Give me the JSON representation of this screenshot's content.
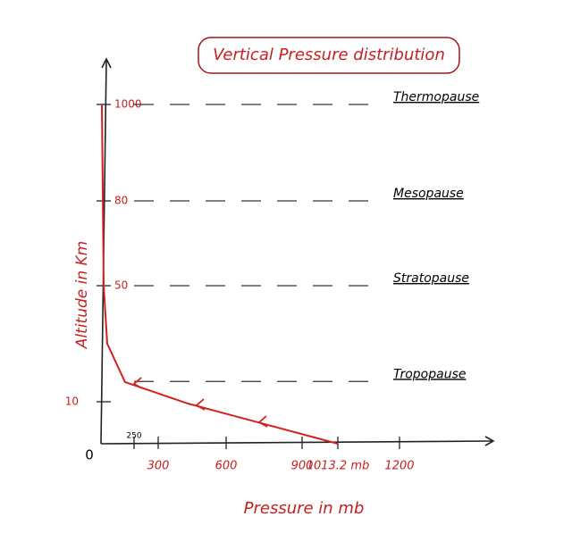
{
  "chart_data": {
    "type": "line",
    "title": "Vertical Pressure distribution",
    "x_label": "Pressure in mb",
    "y_label": "Altitude in Km",
    "x": [
      1013.2,
      695,
      430,
      182,
      47,
      20,
      14,
      7
    ],
    "series": [
      {
        "color": "#d42020",
        "values": [
          0,
          5.6,
          9.6,
          16.8,
          30,
          50,
          80,
          1000
        ]
      }
    ],
    "xticks": [
      250,
      300,
      600,
      900,
      {
        "value": 1013.2,
        "label": "1013.2 mb"
      },
      1200
    ],
    "yticks": [
      0,
      10,
      50,
      80,
      1000
    ],
    "layers": [
      {
        "name": "Thermopause",
        "altitude": 1000
      },
      {
        "name": "Mesopause",
        "altitude": 80
      },
      {
        "name": "Stratopause",
        "altitude": 50
      },
      {
        "name": "Tropopause",
        "altitude": 17
      }
    ]
  }
}
